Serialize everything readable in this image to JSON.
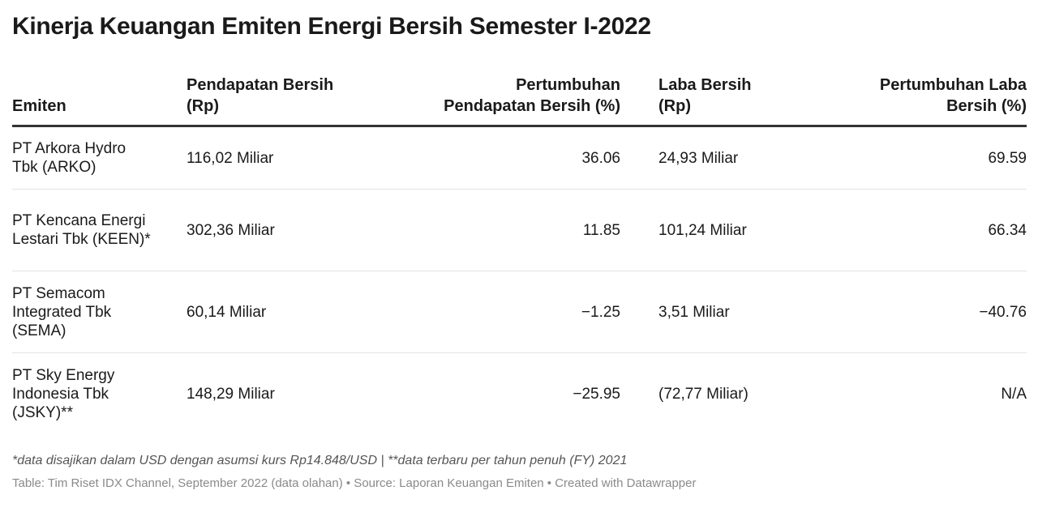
{
  "title": "Kinerja Keuangan Emiten Energi Bersih Semester I-2022",
  "headers": {
    "emiten": "Emiten",
    "pendapatan": "Pendapatan Bersih (Rp)",
    "pertumbuhan_pendapatan": "Pertumbuhan Pendapatan Bersih (%)",
    "laba": "Laba Bersih (Rp)",
    "pertumbuhan_laba": "Pertumbuhan Laba Bersih (%)"
  },
  "rows": [
    {
      "emiten": "PT Arkora Hydro Tbk (ARKO)",
      "pendapatan": "116,02 Miliar",
      "pertumbuhan_pendapatan": "36.06",
      "laba": "24,93 Miliar",
      "pertumbuhan_laba": "69.59"
    },
    {
      "emiten": "PT Kencana Energi Lestari Tbk (KEEN)*",
      "pendapatan": "302,36 Miliar",
      "pertumbuhan_pendapatan": "11.85",
      "laba": "101,24 Miliar",
      "pertumbuhan_laba": "66.34"
    },
    {
      "emiten": "PT Semacom Integrated Tbk (SEMA)",
      "pendapatan": "60,14 Miliar",
      "pertumbuhan_pendapatan": "−1.25",
      "laba": "3,51 Miliar",
      "pertumbuhan_laba": "−40.76"
    },
    {
      "emiten": "PT Sky Energy Indonesia Tbk (JSKY)**",
      "pendapatan": "148,29 Miliar",
      "pertumbuhan_pendapatan": "−25.95",
      "laba": "(72,77 Miliar)",
      "pertumbuhan_laba": "N/A"
    }
  ],
  "notes": "*data disajikan dalam USD dengan asumsi kurs Rp14.848/USD | **data terbaru per tahun penuh (FY) 2021",
  "source": "Table: Tim Riset IDX Channel, September 2022 (data olahan) • Source: Laporan Keuangan Emiten • Created with Datawrapper"
}
